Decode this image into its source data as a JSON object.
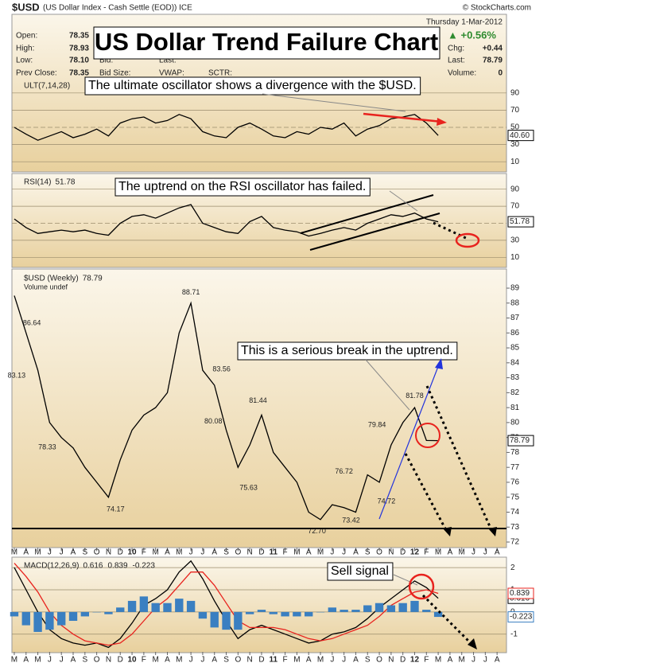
{
  "header": {
    "symbol": "$USD",
    "description": "(US Dollar Index - Cash Settle (EOD)) ICE",
    "copyright": "© StockCharts.com",
    "date": "Thursday  1-Mar-2012",
    "change_pct": "▲ +0.56%",
    "title": "US Dollar Trend Failure Chart",
    "quote_left": [
      [
        "Open:",
        "78.35"
      ],
      [
        "High:",
        "78.93"
      ],
      [
        "Low:",
        "78.10"
      ],
      [
        "Prev Close:",
        "78.35"
      ]
    ],
    "quote_mid": [
      "Bid:",
      "Last:",
      "Bid Size:",
      "VWAP:",
      "SCTR:"
    ],
    "quote_right": [
      [
        "Chg:",
        "+0.44"
      ],
      [
        "Last:",
        "78.79"
      ],
      [
        "Volume:",
        "0"
      ]
    ]
  },
  "chart_data": [
    {
      "type": "line",
      "annotation": "The ultimate oscillator shows a divergence with the $USD.",
      "grid": true,
      "legend_value": false,
      "xlim": [
        -0.2,
        41.8
      ],
      "ylim": [
        0,
        100
      ],
      "yticks": [
        10,
        30,
        50,
        70,
        90
      ],
      "x": [
        0,
        1,
        2,
        3,
        4,
        5,
        6,
        7,
        8,
        9,
        10,
        11,
        12,
        13,
        14,
        15,
        16,
        17,
        18,
        19,
        20,
        21,
        22,
        23,
        24,
        25,
        26,
        27,
        28,
        29,
        30,
        31,
        32,
        33,
        34,
        35,
        36
      ],
      "series": [
        {
          "name": "ULT(7,14,28)",
          "color": "#000000",
          "values": [
            50,
            42,
            35,
            40,
            45,
            38,
            42,
            48,
            40,
            55,
            60,
            62,
            55,
            58,
            65,
            60,
            45,
            40,
            38,
            50,
            55,
            48,
            40,
            38,
            45,
            42,
            50,
            48,
            55,
            40,
            48,
            52,
            60,
            62,
            65,
            55,
            40.6
          ],
          "value_labels": [
            null,
            null,
            null,
            null,
            null,
            null,
            null,
            null,
            null,
            null,
            null,
            null,
            null,
            null,
            null,
            null,
            null,
            null,
            null,
            null,
            null,
            null,
            null,
            null,
            null,
            null,
            null,
            null,
            null,
            null,
            null,
            null,
            null,
            null,
            null,
            null,
            "40.60"
          ]
        }
      ]
    },
    {
      "type": "line",
      "annotation": "The uptrend on the RSI oscillator has failed.",
      "grid": true,
      "legend_value": true,
      "xlim": [
        -0.2,
        41.8
      ],
      "ylim": [
        0,
        100
      ],
      "yticks": [
        10,
        30,
        50,
        70,
        90
      ],
      "x": [
        0,
        1,
        2,
        3,
        4,
        5,
        6,
        7,
        8,
        9,
        10,
        11,
        12,
        13,
        14,
        15,
        16,
        17,
        18,
        19,
        20,
        21,
        22,
        23,
        24,
        25,
        26,
        27,
        28,
        29,
        30,
        31,
        32,
        33,
        34,
        35,
        36
      ],
      "series": [
        {
          "name": "RSI(14)",
          "color": "#000000",
          "values": [
            55,
            45,
            38,
            40,
            42,
            40,
            42,
            38,
            36,
            50,
            58,
            60,
            56,
            62,
            68,
            72,
            50,
            45,
            40,
            38,
            52,
            58,
            45,
            42,
            40,
            35,
            38,
            42,
            45,
            42,
            50,
            55,
            60,
            58,
            62,
            55,
            51.78
          ]
        }
      ]
    },
    {
      "type": "line",
      "annotation": "This is a serious break in the uptrend.",
      "note": "Volume undef",
      "grid": false,
      "legend_value": true,
      "xlim": [
        -0.2,
        41.8
      ],
      "ylim": [
        71.6,
        90.2
      ],
      "yticks": [
        72,
        73,
        74,
        75,
        76,
        77,
        78,
        79,
        80,
        81,
        82,
        83,
        84,
        85,
        86,
        87,
        88,
        89
      ],
      "xticks": [
        {
          "value": 0,
          "label": "M"
        },
        {
          "value": 1,
          "label": "A"
        },
        {
          "value": 2,
          "label": "M"
        },
        {
          "value": 3,
          "label": "J"
        },
        {
          "value": 4,
          "label": "J"
        },
        {
          "value": 5,
          "label": "A"
        },
        {
          "value": 6,
          "label": "S"
        },
        {
          "value": 7,
          "label": "O"
        },
        {
          "value": 8,
          "label": "N"
        },
        {
          "value": 9,
          "label": "D"
        },
        {
          "value": 10,
          "label": "10"
        },
        {
          "value": 11,
          "label": "F"
        },
        {
          "value": 12,
          "label": "M"
        },
        {
          "value": 13,
          "label": "A"
        },
        {
          "value": 14,
          "label": "M"
        },
        {
          "value": 15,
          "label": "J"
        },
        {
          "value": 16,
          "label": "J"
        },
        {
          "value": 17,
          "label": "A"
        },
        {
          "value": 18,
          "label": "S"
        },
        {
          "value": 19,
          "label": "O"
        },
        {
          "value": 20,
          "label": "N"
        },
        {
          "value": 21,
          "label": "D"
        },
        {
          "value": 22,
          "label": "11"
        },
        {
          "value": 23,
          "label": "F"
        },
        {
          "value": 24,
          "label": "M"
        },
        {
          "value": 25,
          "label": "A"
        },
        {
          "value": 26,
          "label": "M"
        },
        {
          "value": 27,
          "label": "J"
        },
        {
          "value": 28,
          "label": "J"
        },
        {
          "value": 29,
          "label": "A"
        },
        {
          "value": 30,
          "label": "S"
        },
        {
          "value": 31,
          "label": "O"
        },
        {
          "value": 32,
          "label": "N"
        },
        {
          "value": 33,
          "label": "D"
        },
        {
          "value": 34,
          "label": "12"
        },
        {
          "value": 35,
          "label": "F"
        },
        {
          "value": 36,
          "label": "M"
        },
        {
          "value": 37,
          "label": "A"
        },
        {
          "value": 38,
          "label": "M"
        },
        {
          "value": 39,
          "label": "J"
        },
        {
          "value": 40,
          "label": "J"
        },
        {
          "value": 41,
          "label": "A"
        }
      ],
      "x": [
        0,
        1,
        2,
        3,
        4,
        5,
        6,
        7,
        8,
        9,
        10,
        11,
        12,
        13,
        14,
        15,
        16,
        17,
        18,
        19,
        20,
        21,
        22,
        23,
        24,
        25,
        26,
        27,
        28,
        29,
        30,
        31,
        32,
        33,
        34,
        35,
        36
      ],
      "series": [
        {
          "name": "$USD (Weekly)",
          "color": "#000000",
          "values": [
            88.5,
            86.0,
            83.5,
            80.0,
            79.0,
            78.3,
            77.0,
            76.0,
            75.0,
            77.5,
            79.5,
            80.5,
            81.0,
            82.0,
            86.0,
            88.0,
            83.5,
            82.5,
            79.5,
            77.0,
            78.5,
            80.5,
            78.0,
            77.0,
            76.0,
            74.0,
            73.5,
            74.5,
            74.3,
            74.0,
            76.5,
            76.0,
            78.5,
            80.0,
            81.0,
            78.8,
            78.79
          ]
        }
      ],
      "point_labels": [
        {
          "x": 1.5,
          "value": 86.64
        },
        {
          "x": 0.2,
          "value": 83.13
        },
        {
          "x": 2.8,
          "value": 78.33
        },
        {
          "x": 8.6,
          "value": 74.17
        },
        {
          "x": 15,
          "value": 88.71
        },
        {
          "x": 17.6,
          "value": 83.56
        },
        {
          "x": 16.9,
          "value": 80.08
        },
        {
          "x": 20.7,
          "value": 81.44
        },
        {
          "x": 19.9,
          "value": 75.63
        },
        {
          "x": 25.7,
          "value": 72.7,
          "label": "72.70"
        },
        {
          "x": 28.6,
          "value": 73.42
        },
        {
          "x": 28,
          "value": 76.72
        },
        {
          "x": 30.8,
          "value": 79.84
        },
        {
          "x": 31.6,
          "value": 74.72
        },
        {
          "x": 34,
          "value": 81.78
        }
      ]
    },
    {
      "type": "line",
      "annotation": "Sell signal",
      "grid": true,
      "legend_value": true,
      "xlim": [
        -0.2,
        41.8
      ],
      "ylim": [
        -1.8,
        2.4
      ],
      "yticks": [
        -1,
        0,
        1,
        2
      ],
      "xticks": [
        {
          "value": 0,
          "label": "M"
        },
        {
          "value": 1,
          "label": "A"
        },
        {
          "value": 2,
          "label": "M"
        },
        {
          "value": 3,
          "label": "J"
        },
        {
          "value": 4,
          "label": "J"
        },
        {
          "value": 5,
          "label": "A"
        },
        {
          "value": 6,
          "label": "S"
        },
        {
          "value": 7,
          "label": "O"
        },
        {
          "value": 8,
          "label": "N"
        },
        {
          "value": 9,
          "label": "D"
        },
        {
          "value": 10,
          "label": "10"
        },
        {
          "value": 11,
          "label": "F"
        },
        {
          "value": 12,
          "label": "M"
        },
        {
          "value": 13,
          "label": "A"
        },
        {
          "value": 14,
          "label": "M"
        },
        {
          "value": 15,
          "label": "J"
        },
        {
          "value": 16,
          "label": "J"
        },
        {
          "value": 17,
          "label": "A"
        },
        {
          "value": 18,
          "label": "S"
        },
        {
          "value": 19,
          "label": "O"
        },
        {
          "value": 20,
          "label": "N"
        },
        {
          "value": 21,
          "label": "D"
        },
        {
          "value": 22,
          "label": "11"
        },
        {
          "value": 23,
          "label": "F"
        },
        {
          "value": 24,
          "label": "M"
        },
        {
          "value": 25,
          "label": "A"
        },
        {
          "value": 26,
          "label": "M"
        },
        {
          "value": 27,
          "label": "J"
        },
        {
          "value": 28,
          "label": "J"
        },
        {
          "value": 29,
          "label": "A"
        },
        {
          "value": 30,
          "label": "S"
        },
        {
          "value": 31,
          "label": "O"
        },
        {
          "value": 32,
          "label": "N"
        },
        {
          "value": 33,
          "label": "D"
        },
        {
          "value": 34,
          "label": "12"
        },
        {
          "value": 35,
          "label": "F"
        },
        {
          "value": 36,
          "label": "M"
        },
        {
          "value": 37,
          "label": "A"
        },
        {
          "value": 38,
          "label": "M"
        },
        {
          "value": 39,
          "label": "J"
        },
        {
          "value": 40,
          "label": "J"
        },
        {
          "value": 41,
          "label": "A"
        }
      ],
      "x": [
        0,
        1,
        2,
        3,
        4,
        5,
        6,
        7,
        8,
        9,
        10,
        11,
        12,
        13,
        14,
        15,
        16,
        17,
        18,
        19,
        20,
        21,
        22,
        23,
        24,
        25,
        26,
        27,
        28,
        29,
        30,
        31,
        32,
        33,
        34,
        35,
        36
      ],
      "series": [
        {
          "name": "MACD(12,26,9)",
          "color": "#000000",
          "values": [
            2.0,
            1.0,
            0,
            -0.8,
            -1.2,
            -1.4,
            -1.5,
            -1.4,
            -1.6,
            -1.2,
            -0.5,
            0.3,
            0.6,
            1.0,
            1.8,
            2.3,
            1.5,
            0.5,
            -0.4,
            -1.2,
            -0.8,
            -0.6,
            -0.8,
            -1.0,
            -1.2,
            -1.4,
            -1.3,
            -1.0,
            -0.9,
            -0.7,
            -0.3,
            0.2,
            0.6,
            1.0,
            1.4,
            1.1,
            0.616
          ]
        },
        {
          "color": "#e8231e",
          "values": [
            2.2,
            1.6,
            0.9,
            0.0,
            -0.6,
            -1.0,
            -1.3,
            -1.4,
            -1.5,
            -1.4,
            -1.0,
            -0.4,
            0.2,
            0.6,
            1.2,
            1.8,
            1.8,
            1.2,
            0.4,
            -0.4,
            -0.7,
            -0.7,
            -0.7,
            -0.8,
            -1.0,
            -1.2,
            -1.3,
            -1.2,
            -1.0,
            -0.8,
            -0.6,
            -0.2,
            0.3,
            0.6,
            0.9,
            1.0,
            0.839
          ]
        },
        {
          "color": "#3a7fc1",
          "style": "bar",
          "values": [
            -0.2,
            -0.6,
            -0.9,
            -0.8,
            -0.6,
            -0.4,
            -0.2,
            0.0,
            -0.1,
            0.2,
            0.5,
            0.7,
            0.4,
            0.4,
            0.6,
            0.5,
            -0.3,
            -0.7,
            -0.8,
            -0.8,
            -0.1,
            0.1,
            -0.1,
            -0.2,
            -0.2,
            -0.2,
            0.0,
            0.2,
            0.1,
            0.1,
            0.3,
            0.4,
            0.3,
            0.4,
            0.5,
            0.1,
            -0.223
          ]
        }
      ]
    }
  ]
}
